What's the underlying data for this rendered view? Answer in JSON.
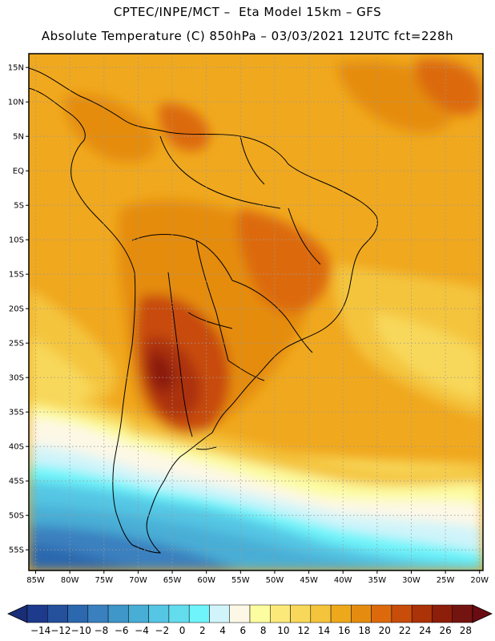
{
  "header": {
    "line1": "CPTEC/INPE/MCT –  Eta Model 15km – GFS",
    "line2": "Absolute Temperature (C) 850hPa – 03/03/2021 12UTC fct=228h"
  },
  "axes": {
    "lat_labels": [
      "15N",
      "10N",
      "5N",
      "EQ",
      "5S",
      "10S",
      "15S",
      "20S",
      "25S",
      "30S",
      "35S",
      "40S",
      "45S",
      "50S",
      "55S"
    ],
    "lat_values": [
      15,
      10,
      5,
      0,
      -5,
      -10,
      -15,
      -20,
      -25,
      -30,
      -35,
      -40,
      -45,
      -50,
      -55
    ],
    "lon_labels": [
      "85W",
      "80W",
      "75W",
      "70W",
      "65W",
      "60W",
      "55W",
      "50W",
      "45W",
      "40W",
      "35W",
      "30W",
      "25W",
      "20W"
    ],
    "lon_values": [
      -85,
      -80,
      -75,
      -70,
      -65,
      -60,
      -55,
      -50,
      -45,
      -40,
      -35,
      -30,
      -25,
      -20
    ],
    "lat_range": [
      -58,
      17
    ],
    "lon_range": [
      -86,
      -19.5
    ],
    "grid": "dotted"
  },
  "colorbar": {
    "labels": [
      "-14",
      "-12",
      "-10",
      "-8",
      "-6",
      "-4",
      "-2",
      "0",
      "2",
      "4",
      "6",
      "8",
      "10",
      "12",
      "14",
      "16",
      "18",
      "20",
      "22",
      "24",
      "26",
      "28"
    ],
    "colors": [
      "#1e3a8c",
      "#24509c",
      "#2c68ae",
      "#3a80bf",
      "#3f96c8",
      "#48aed6",
      "#55c6e4",
      "#63dcee",
      "#6ef4fa",
      "#d0f4fa",
      "#fdf8e6",
      "#fcfca0",
      "#fbe97a",
      "#f8d85a",
      "#f4c43c",
      "#eea81c",
      "#e58c10",
      "#dc6a0c",
      "#c84c0a",
      "#ac3208",
      "#8c1e0a",
      "#741410"
    ],
    "end_low": "#1a2e78",
    "end_high": "#6a0c12"
  }
}
